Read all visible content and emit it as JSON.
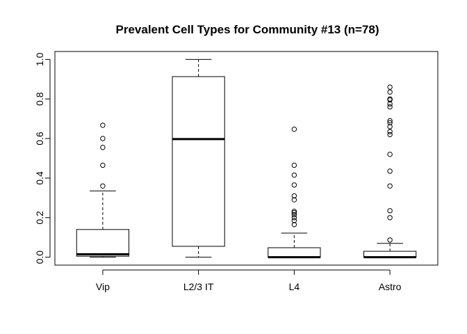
{
  "chart_data": {
    "type": "boxplot",
    "title": "Prevalent Cell Types for Community #13 (n=78)",
    "xlabel": "",
    "ylabel": "",
    "ylim": [
      -0.04,
      1.04
    ],
    "yticks": [
      "0.0",
      "0.2",
      "0.4",
      "0.6",
      "0.8",
      "1.0"
    ],
    "ytick_values": [
      0,
      0.2,
      0.4,
      0.6,
      0.8,
      1.0
    ],
    "categories": [
      "Vip",
      "L2/3 IT",
      "L4",
      "Astro"
    ],
    "boxes": [
      {
        "name": "Vip",
        "lower_whisker": 0.0,
        "q1": 0.005,
        "median": 0.015,
        "q3": 0.14,
        "upper_whisker": 0.335,
        "outliers": [
          0.36,
          0.465,
          0.555,
          0.6,
          0.667
        ]
      },
      {
        "name": "L2/3 IT",
        "lower_whisker": 0.0,
        "q1": 0.055,
        "median": 0.597,
        "q3": 0.913,
        "upper_whisker": 1.0,
        "outliers": []
      },
      {
        "name": "L4",
        "lower_whisker": 0.0,
        "q1": 0.0,
        "median": 0.0,
        "q3": 0.048,
        "upper_whisker": 0.122,
        "outliers": [
          0.165,
          0.185,
          0.2,
          0.215,
          0.225,
          0.232,
          0.29,
          0.31,
          0.365,
          0.415,
          0.465,
          0.647
        ]
      },
      {
        "name": "Astro",
        "lower_whisker": 0.0,
        "q1": 0.0,
        "median": 0.0,
        "q3": 0.03,
        "upper_whisker": 0.07,
        "outliers": [
          0.087,
          0.2,
          0.235,
          0.36,
          0.435,
          0.52,
          0.62,
          0.635,
          0.66,
          0.68,
          0.69,
          0.76,
          0.775,
          0.795,
          0.8,
          0.835,
          0.86
        ]
      }
    ],
    "grid": false,
    "legend": "none"
  }
}
